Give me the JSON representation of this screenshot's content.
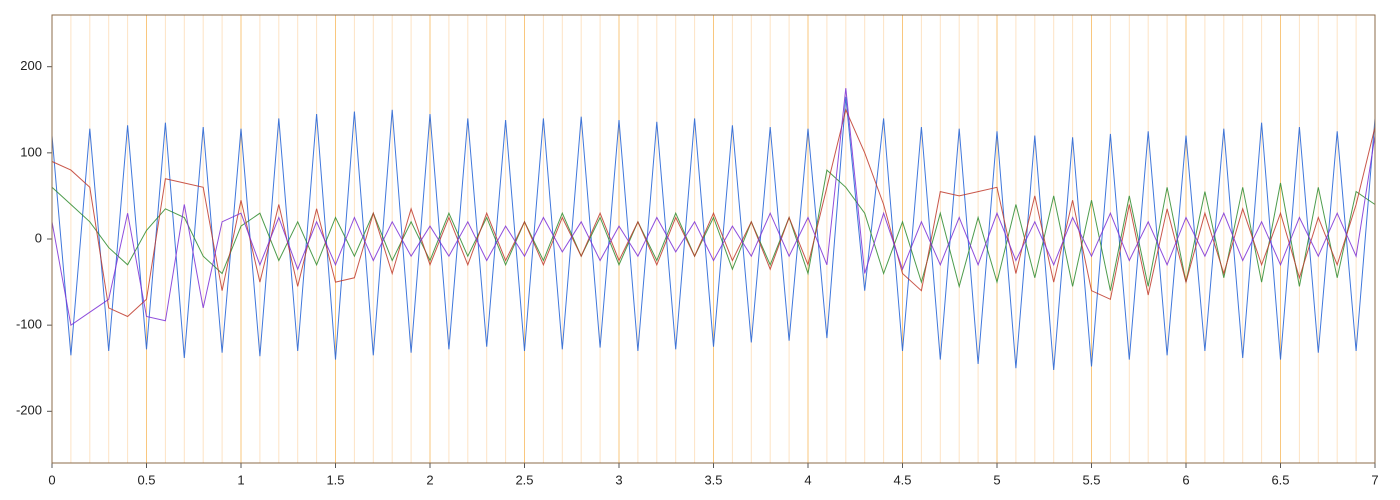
{
  "chart_data": {
    "type": "line",
    "x": [
      0,
      0.1,
      0.2,
      0.3,
      0.4,
      0.5,
      0.6,
      0.7,
      0.8,
      0.9,
      1,
      1.1,
      1.2,
      1.3,
      1.4,
      1.5,
      1.6,
      1.7,
      1.8,
      1.9,
      2,
      2.1,
      2.2,
      2.3,
      2.4,
      2.5,
      2.6,
      2.7,
      2.8,
      2.9,
      3,
      3.1,
      3.2,
      3.3,
      3.4,
      3.5,
      3.6,
      3.7,
      3.8,
      3.9,
      4,
      4.1,
      4.2,
      4.3,
      4.4,
      4.5,
      4.6,
      4.7,
      4.8,
      4.9,
      5,
      5.1,
      5.2,
      5.3,
      5.4,
      5.5,
      5.6,
      5.7,
      5.8,
      5.9,
      6,
      6.1,
      6.2,
      6.3,
      6.4,
      6.5,
      6.6,
      6.7,
      6.8,
      6.9,
      7
    ],
    "series": [
      {
        "color": "#1f5fd6",
        "values": [
          120,
          -135,
          128,
          -130,
          132,
          -128,
          135,
          -138,
          130,
          -132,
          128,
          -136,
          140,
          -130,
          145,
          -140,
          148,
          -135,
          150,
          -132,
          145,
          -128,
          140,
          -125,
          138,
          -130,
          140,
          -128,
          142,
          -126,
          138,
          -130,
          136,
          -128,
          140,
          -125,
          132,
          -120,
          130,
          -118,
          128,
          -115,
          165,
          -60,
          140,
          -130,
          130,
          -140,
          128,
          -145,
          125,
          -150,
          120,
          -152,
          118,
          -148,
          122,
          -140,
          125,
          -135,
          120,
          -130,
          128,
          -138,
          135,
          -140,
          130,
          -132,
          125,
          -130,
          140
        ]
      },
      {
        "color": "#2e8b2e",
        "values": [
          60,
          40,
          20,
          -10,
          -30,
          10,
          35,
          25,
          -20,
          -40,
          15,
          30,
          -25,
          20,
          -30,
          25,
          -20,
          30,
          -25,
          20,
          -25,
          30,
          -20,
          25,
          -30,
          20,
          -25,
          30,
          -20,
          25,
          -30,
          20,
          -25,
          30,
          -20,
          25,
          -35,
          20,
          -30,
          25,
          -40,
          80,
          60,
          30,
          -40,
          20,
          -50,
          30,
          -55,
          25,
          -50,
          40,
          -45,
          50,
          -55,
          45,
          -60,
          50,
          -55,
          60,
          -50,
          55,
          -45,
          60,
          -50,
          65,
          -55,
          60,
          -45,
          55,
          40
        ]
      },
      {
        "color": "#c0392b",
        "values": [
          90,
          80,
          60,
          -80,
          -90,
          -70,
          70,
          65,
          60,
          -60,
          45,
          -50,
          40,
          -55,
          35,
          -50,
          -45,
          30,
          -40,
          35,
          -30,
          25,
          -30,
          30,
          -25,
          20,
          -30,
          25,
          -20,
          30,
          -25,
          20,
          -30,
          25,
          -20,
          30,
          -25,
          20,
          -35,
          25,
          -30,
          60,
          150,
          100,
          40,
          -40,
          -60,
          55,
          50,
          55,
          60,
          -40,
          50,
          -50,
          45,
          -60,
          -70,
          40,
          -65,
          35,
          -50,
          30,
          -40,
          35,
          -30,
          30,
          -45,
          25,
          -30,
          40,
          130
        ]
      },
      {
        "color": "#7b2fd6",
        "values": [
          20,
          -100,
          -85,
          -70,
          30,
          -90,
          -95,
          40,
          -80,
          20,
          30,
          -30,
          25,
          -35,
          20,
          -30,
          25,
          -25,
          20,
          -20,
          15,
          -20,
          20,
          -25,
          15,
          -20,
          25,
          -15,
          20,
          -25,
          15,
          -20,
          25,
          -15,
          20,
          -25,
          15,
          -20,
          30,
          -20,
          25,
          -30,
          175,
          -40,
          30,
          -35,
          20,
          -30,
          25,
          -30,
          30,
          -25,
          20,
          -30,
          25,
          -20,
          30,
          -25,
          20,
          -30,
          25,
          -20,
          30,
          -25,
          20,
          -30,
          25,
          -20,
          30,
          -20,
          120
        ]
      }
    ],
    "xlim": [
      0,
      7
    ],
    "xticks": [
      0,
      0.5,
      1,
      1.5,
      2,
      2.5,
      3,
      3.5,
      4,
      4.5,
      5,
      5.5,
      6,
      6.5,
      7
    ],
    "xminor_ticks": [
      0.1,
      0.2,
      0.3,
      0.4,
      0.6,
      0.7,
      0.8,
      0.9,
      1.1,
      1.2,
      1.3,
      1.4,
      1.6,
      1.7,
      1.8,
      1.9,
      2.1,
      2.2,
      2.3,
      2.4,
      2.6,
      2.7,
      2.8,
      2.9,
      3.1,
      3.2,
      3.3,
      3.4,
      3.6,
      3.7,
      3.8,
      3.9,
      4.1,
      4.2,
      4.3,
      4.4,
      4.6,
      4.7,
      4.8,
      4.9,
      5.1,
      5.2,
      5.3,
      5.4,
      5.6,
      5.7,
      5.8,
      5.9,
      6.1,
      6.2,
      6.3,
      6.4,
      6.6,
      6.7,
      6.8,
      6.9
    ],
    "ylim": [
      -260,
      260
    ],
    "yticks": [
      -200,
      -100,
      0,
      100,
      200
    ],
    "grid": true
  }
}
